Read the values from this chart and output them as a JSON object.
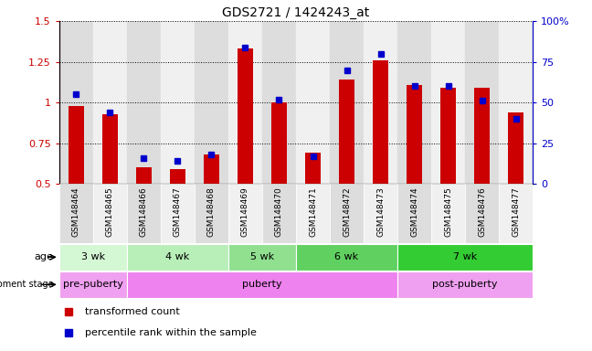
{
  "title": "GDS2721 / 1424243_at",
  "samples": [
    "GSM148464",
    "GSM148465",
    "GSM148466",
    "GSM148467",
    "GSM148468",
    "GSM148469",
    "GSM148470",
    "GSM148471",
    "GSM148472",
    "GSM148473",
    "GSM148474",
    "GSM148475",
    "GSM148476",
    "GSM148477"
  ],
  "transformed_count": [
    0.98,
    0.93,
    0.6,
    0.59,
    0.68,
    1.33,
    1.0,
    0.69,
    1.14,
    1.26,
    1.11,
    1.09,
    1.09,
    0.94
  ],
  "percentile_rank": [
    55,
    44,
    16,
    14,
    18,
    84,
    52,
    17,
    70,
    80,
    60,
    60,
    51,
    40
  ],
  "bar_color": "#cc0000",
  "dot_color": "#0000cc",
  "ylim_left": [
    0.5,
    1.5
  ],
  "ylim_right": [
    0,
    100
  ],
  "yticks_left": [
    0.5,
    0.75,
    1.0,
    1.25,
    1.5
  ],
  "yticks_right": [
    0,
    25,
    50,
    75,
    100
  ],
  "ytick_labels_left": [
    "0.5",
    "0.75",
    "1",
    "1.25",
    "1.5"
  ],
  "ytick_labels_right": [
    "0",
    "25",
    "50",
    "75",
    "100%"
  ],
  "age_groups": [
    {
      "label": "3 wk",
      "start": 0,
      "end": 2,
      "color": "#d4f7d4"
    },
    {
      "label": "4 wk",
      "start": 2,
      "end": 5,
      "color": "#b8eeb8"
    },
    {
      "label": "5 wk",
      "start": 5,
      "end": 7,
      "color": "#90e090"
    },
    {
      "label": "6 wk",
      "start": 7,
      "end": 10,
      "color": "#60d060"
    },
    {
      "label": "7 wk",
      "start": 10,
      "end": 14,
      "color": "#33cc33"
    }
  ],
  "dev_stage_groups": [
    {
      "label": "pre-puberty",
      "start": 0,
      "end": 2,
      "color": "#f0a0f0"
    },
    {
      "label": "puberty",
      "start": 2,
      "end": 10,
      "color": "#ee82ee"
    },
    {
      "label": "post-puberty",
      "start": 10,
      "end": 14,
      "color": "#f0a0f0"
    }
  ],
  "legend_bar_label": "transformed count",
  "legend_dot_label": "percentile rank within the sample",
  "background_color": "#ffffff",
  "col_even_color": "#dddddd",
  "col_odd_color": "#f0f0f0"
}
